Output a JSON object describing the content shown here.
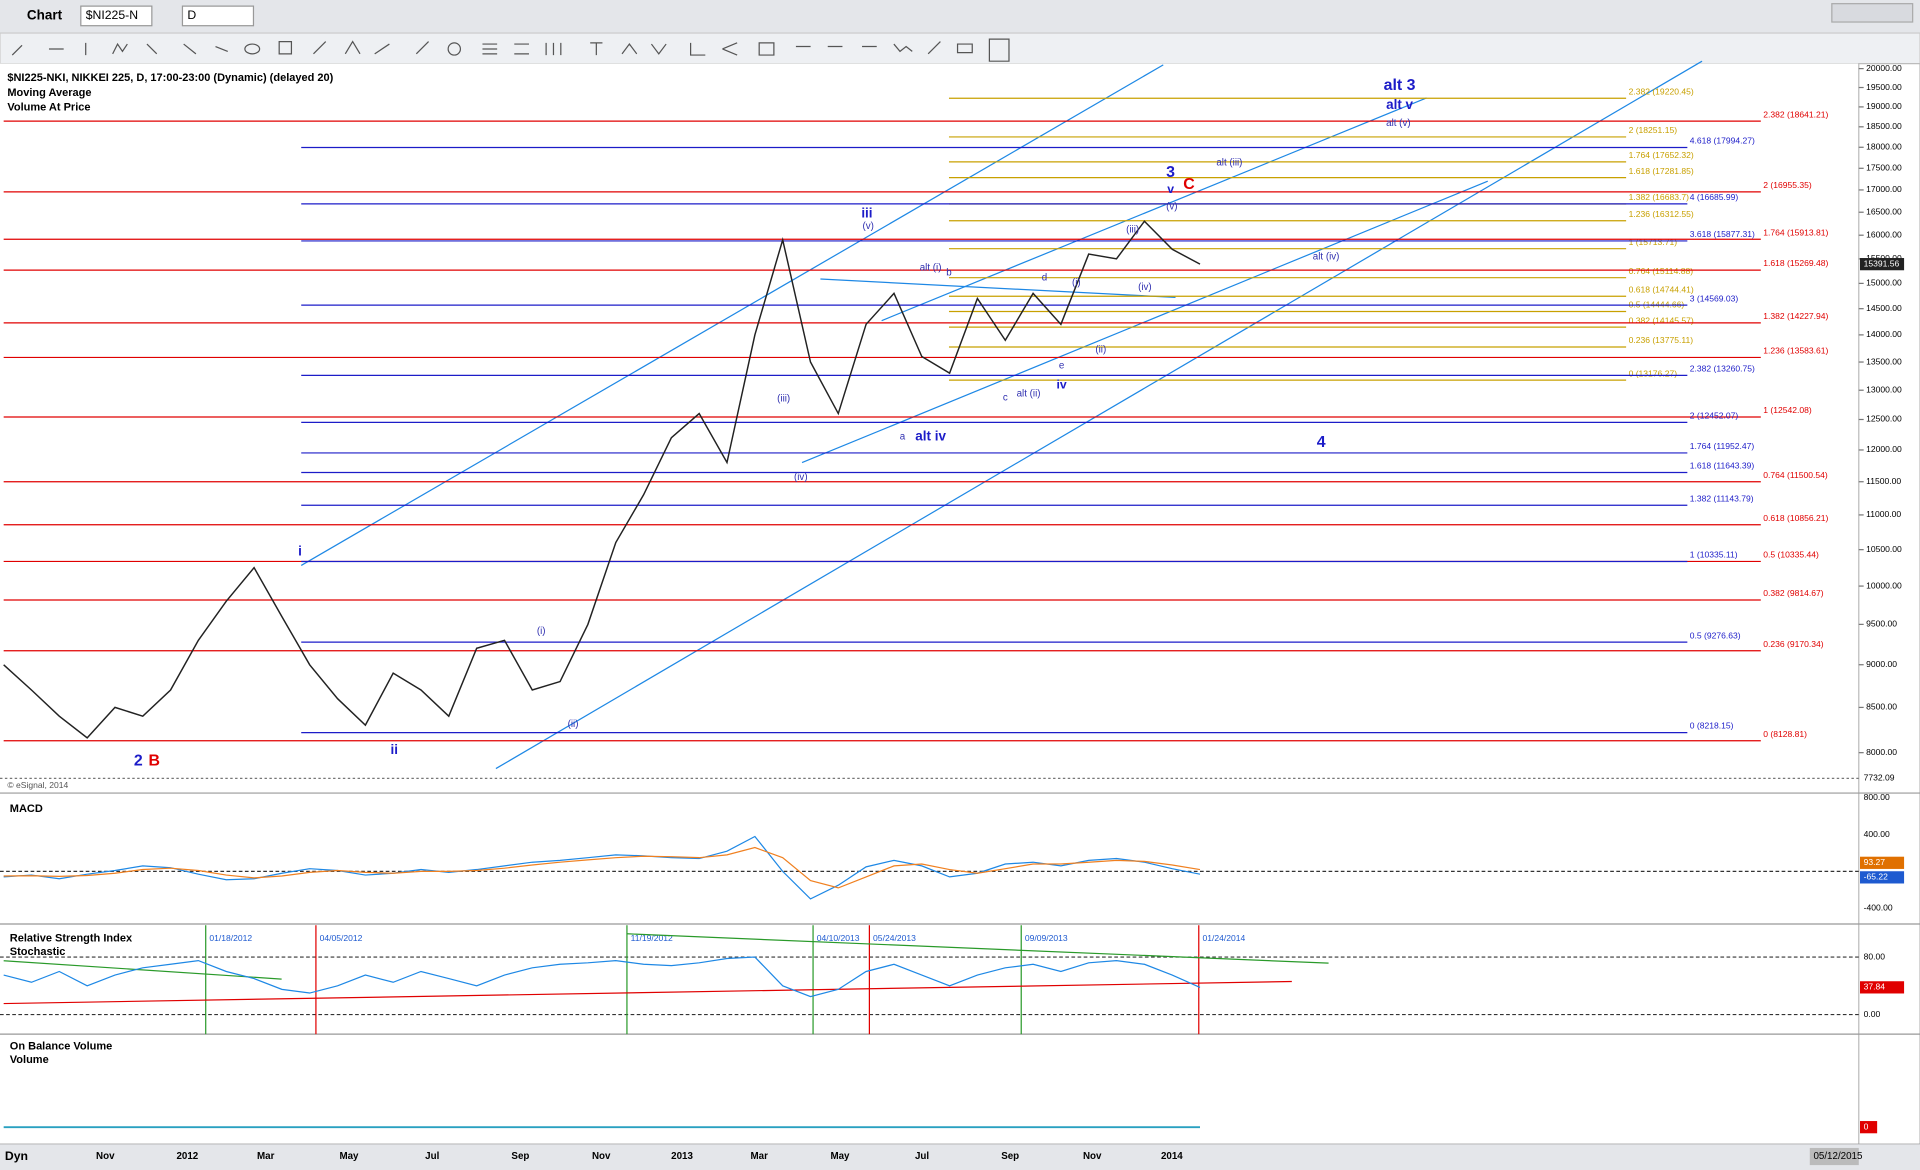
{
  "window": {
    "title": "Chart",
    "symbol": "$NI225-N",
    "interval": "D"
  },
  "chart": {
    "header": [
      "$NI225-NKI, NIKKEI 225, D, 17:00-23:00 (Dynamic) (delayed 20)",
      "Moving Average",
      "Volume At Price"
    ],
    "copyright": "© eSignal, 2014",
    "log_scale": true,
    "price_ticks": [
      {
        "value": 8000,
        "label": "8000.00"
      },
      {
        "value": 8500,
        "label": "8500.00"
      },
      {
        "value": 9000,
        "label": "9000.00"
      },
      {
        "value": 9500,
        "label": "9500.00"
      },
      {
        "value": 10000,
        "label": "10000.00"
      },
      {
        "value": 10500,
        "label": "10500.00"
      },
      {
        "value": 11000,
        "label": "11000.00"
      },
      {
        "value": 11500,
        "label": "11500.00"
      },
      {
        "value": 12000,
        "label": "12000.00"
      },
      {
        "value": 12500,
        "label": "12500.00"
      },
      {
        "value": 13000,
        "label": "13000.00"
      },
      {
        "value": 13500,
        "label": "13500.00"
      },
      {
        "value": 14000,
        "label": "14000.00"
      },
      {
        "value": 14500,
        "label": "14500.00"
      },
      {
        "value": 15000,
        "label": "15000.00"
      },
      {
        "value": 15500,
        "label": "15500.00"
      },
      {
        "value": 16000,
        "label": "16000.00"
      },
      {
        "value": 16500,
        "label": "16500.00"
      },
      {
        "value": 17000,
        "label": "17000.00"
      },
      {
        "value": 17500,
        "label": "17500.00"
      },
      {
        "value": 18000,
        "label": "18000.00"
      },
      {
        "value": 18500,
        "label": "18500.00"
      },
      {
        "value": 19000,
        "label": "19000.00"
      },
      {
        "value": 19500,
        "label": "19500.00"
      },
      {
        "value": 20000,
        "label": "20000.00"
      }
    ],
    "low_label": {
      "value": 7732.09,
      "label": "7732.09"
    },
    "last": {
      "value": 15391.56,
      "label": "15391.56"
    },
    "x_labels": [
      "Nov",
      "2012",
      "Mar",
      "May",
      "Jul",
      "Sep",
      "Nov",
      "2013",
      "Mar",
      "May",
      "Jul",
      "Sep",
      "Nov",
      "2014"
    ],
    "levels_red": [
      {
        "label": "2.382 (18641.21)",
        "value": 18641.21
      },
      {
        "label": "2 (16955.35)",
        "value": 16955.35
      },
      {
        "label": "1.764 (15913.81)",
        "value": 15913.81
      },
      {
        "label": "1.618 (15269.48)",
        "value": 15269.48
      },
      {
        "label": "1.382 (14227.94)",
        "value": 14227.94
      },
      {
        "label": "1.236 (13583.61)",
        "value": 13583.61
      },
      {
        "label": "1 (12542.08)",
        "value": 12542.08
      },
      {
        "label": "0.764 (11500.54)",
        "value": 11500.54
      },
      {
        "label": "0.618 (10856.21)",
        "value": 10856.21
      },
      {
        "label": "0.5 (10335.44)",
        "value": 10335.44
      },
      {
        "label": "0.382 (9814.67)",
        "value": 9814.67
      },
      {
        "label": "0.236 (9170.34)",
        "value": 9170.34
      },
      {
        "label": "0 (8128.81)",
        "value": 8128.81
      }
    ],
    "levels_blue": [
      {
        "label": "4.618 (17994.27)",
        "value": 17994.27
      },
      {
        "label": "4 (16685.99)",
        "value": 16685.99
      },
      {
        "label": "3.618 (15877.31)",
        "value": 15877.31
      },
      {
        "label": "3 (14569.03)",
        "value": 14569.03
      },
      {
        "label": "2.382 (13260.75)",
        "value": 13260.75
      },
      {
        "label": "2 (12452.07)",
        "value": 12452.07
      },
      {
        "label": "1.764 (11952.47)",
        "value": 11952.47
      },
      {
        "label": "1.618 (11643.39)",
        "value": 11643.39
      },
      {
        "label": "1.382 (11143.79)",
        "value": 11143.79
      },
      {
        "label": "1 (10335.11)",
        "value": 10335.11
      },
      {
        "label": "0.5 (9276.63)",
        "value": 9276.63
      },
      {
        "label": "0 (8218.15)",
        "value": 8218.15
      }
    ],
    "levels_gold": [
      {
        "label": "2.382 (19220.45)",
        "value": 19220.45
      },
      {
        "label": "2 (18251.15)",
        "value": 18251.15
      },
      {
        "label": "1.764 (17652.32)",
        "value": 17652.32
      },
      {
        "label": "1.618 (17281.85)",
        "value": 17281.85
      },
      {
        "label": "1.382 (16683.7)",
        "value": 16683.7
      },
      {
        "label": "1.236 (16312.55)",
        "value": 16312.55
      },
      {
        "label": "1 (15713.71)",
        "value": 15713.71
      },
      {
        "label": "0.764 (15114.88)",
        "value": 15114.88
      },
      {
        "label": "0.618 (14744.41)",
        "value": 14744.41
      },
      {
        "label": "0.5 (14444.66)",
        "value": 14444.66
      },
      {
        "label": "0.382 (14145.57)",
        "value": 14145.57
      },
      {
        "label": "0.236 (13775.11)",
        "value": 13775.11
      },
      {
        "label": "0 (13176.27)",
        "value": 13176.27
      }
    ],
    "annotations": [
      {
        "text": "alt 3",
        "color": "#1c1cc8"
      },
      {
        "text": "alt v",
        "color": "#1c1cc8"
      },
      {
        "text": "alt (v)",
        "color": "#3030b0"
      },
      {
        "text": "3",
        "color": "#1c1cc8"
      },
      {
        "text": "v",
        "color": "#1c1cc8"
      },
      {
        "text": "C",
        "color": "#e00000"
      },
      {
        "text": "alt (iii)",
        "color": "#3030b0"
      },
      {
        "text": "(v)",
        "color": "#3030b0"
      },
      {
        "text": "(iii)",
        "color": "#3030b0"
      },
      {
        "text": "alt (iv)",
        "color": "#3030b0"
      },
      {
        "text": "(iv)",
        "color": "#3030b0"
      },
      {
        "text": "(i)",
        "color": "#3030b0"
      },
      {
        "text": "d",
        "color": "#3030b0"
      },
      {
        "text": "(ii)",
        "color": "#3030b0"
      },
      {
        "text": "e",
        "color": "#3030b0"
      },
      {
        "text": "iv",
        "color": "#1c1cc8"
      },
      {
        "text": "c",
        "color": "#3030b0"
      },
      {
        "text": "alt (ii)",
        "color": "#3030b0"
      },
      {
        "text": "b",
        "color": "#3030b0"
      },
      {
        "text": "alt (i)",
        "color": "#3030b0"
      },
      {
        "text": "iii",
        "color": "#1c1cc8"
      },
      {
        "text": "(v)",
        "color": "#3030b0"
      },
      {
        "text": "a",
        "color": "#3030b0"
      },
      {
        "text": "alt iv",
        "color": "#1c1cc8"
      },
      {
        "text": "4",
        "color": "#1c1cc8"
      },
      {
        "text": "(iii)",
        "color": "#3030b0"
      },
      {
        "text": "(iv)",
        "color": "#3030b0"
      },
      {
        "text": "i",
        "color": "#1c1cc8"
      },
      {
        "text": "(i)",
        "color": "#3030b0"
      },
      {
        "text": "(ii)",
        "color": "#3030b0"
      },
      {
        "text": "ii",
        "color": "#1c1cc8"
      },
      {
        "text": "2",
        "color": "#1c1cc8"
      },
      {
        "text": "B",
        "color": "#e00000"
      }
    ],
    "price": [
      9000,
      8700,
      8400,
      8160,
      8500,
      8400,
      8700,
      9300,
      9800,
      10250,
      9600,
      9000,
      8600,
      8300,
      8900,
      8700,
      8400,
      9200,
      9300,
      8700,
      8800,
      9500,
      10600,
      11300,
      12200,
      12600,
      11800,
      14000,
      15900,
      13500,
      12600,
      14200,
      14800,
      13600,
      13300,
      14700,
      13900,
      14800,
      14200,
      15600,
      15500,
      16300,
      15700,
      15391.56
    ]
  },
  "macd": {
    "title": "MACD",
    "ticks": [
      {
        "value": 800,
        "label": "800.00"
      },
      {
        "value": 400,
        "label": "400.00"
      },
      {
        "value": -400,
        "label": "-400.00"
      }
    ],
    "macd": [
      -60,
      -40,
      -80,
      -30,
      10,
      60,
      40,
      -30,
      -90,
      -80,
      -20,
      30,
      10,
      -40,
      -20,
      20,
      -10,
      20,
      60,
      100,
      120,
      150,
      180,
      170,
      150,
      140,
      220,
      380,
      0,
      -300,
      -150,
      50,
      120,
      60,
      -60,
      -20,
      80,
      100,
      60,
      120,
      140,
      100,
      30,
      -30
    ],
    "signal": [
      -50,
      -48,
      -55,
      -45,
      -20,
      20,
      35,
      10,
      -40,
      -70,
      -50,
      -10,
      10,
      -10,
      -20,
      0,
      0,
      10,
      35,
      70,
      100,
      125,
      150,
      165,
      160,
      150,
      180,
      260,
      150,
      -100,
      -180,
      -60,
      60,
      80,
      20,
      -20,
      30,
      80,
      80,
      100,
      120,
      110,
      70,
      20
    ],
    "labels": [
      {
        "value": 93.27,
        "label": "93.27"
      },
      {
        "value": -65.22,
        "label": "-65.22"
      }
    ]
  },
  "rsi": {
    "titles": [
      "Relative Strength Index",
      "Stochastic"
    ],
    "ticks": [
      {
        "value": 80,
        "label": "80.00"
      },
      {
        "value": 0,
        "label": "0.00"
      }
    ],
    "markers": [
      {
        "label": "01/18/2012",
        "color": "#2a9a2a"
      },
      {
        "label": "04/05/2012",
        "color": "#e00000"
      },
      {
        "label": "11/19/2012",
        "color": "#2a9a2a"
      },
      {
        "label": "04/10/2013",
        "color": "#2a9a2a"
      },
      {
        "label": "05/24/2013",
        "color": "#e00000"
      },
      {
        "label": "09/09/2013",
        "color": "#2a9a2a"
      },
      {
        "label": "01/24/2014",
        "color": "#e00000"
      }
    ],
    "values": [
      55,
      45,
      60,
      40,
      55,
      65,
      70,
      75,
      60,
      50,
      35,
      30,
      40,
      55,
      45,
      60,
      50,
      40,
      55,
      65,
      70,
      72,
      75,
      70,
      68,
      72,
      78,
      80,
      40,
      25,
      35,
      60,
      70,
      55,
      40,
      55,
      65,
      70,
      60,
      72,
      75,
      70,
      55,
      37.84
    ],
    "last": {
      "value": 37.84,
      "label": "37.84"
    }
  },
  "obv": {
    "titles": [
      "On Balance Volume",
      "Volume"
    ],
    "last": {
      "value": 0,
      "label": "0"
    }
  },
  "footer": {
    "mode": "Dyn",
    "date": "05/12/2015"
  }
}
